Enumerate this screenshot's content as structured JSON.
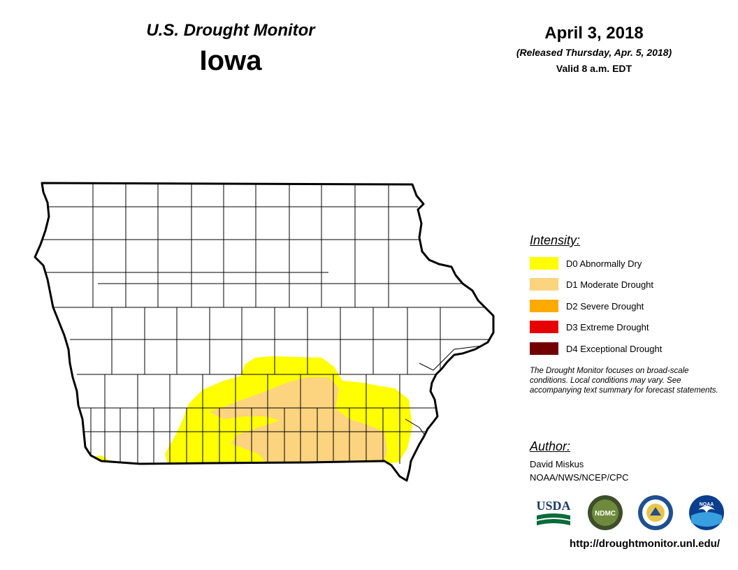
{
  "header": {
    "title": "U.S. Drought Monitor",
    "state": "Iowa"
  },
  "date_block": {
    "date": "April 3, 2018",
    "released": "(Released Thursday, Apr. 5, 2018)",
    "valid": "Valid 8 a.m. EDT"
  },
  "legend": {
    "title": "Intensity:",
    "items": [
      {
        "label": "D0 Abnormally Dry",
        "color": "#ffff00"
      },
      {
        "label": "D1 Moderate Drought",
        "color": "#fcd37f"
      },
      {
        "label": "D2 Severe Drought",
        "color": "#ffaa00"
      },
      {
        "label": "D3 Extreme Drought",
        "color": "#e60000"
      },
      {
        "label": "D4 Exceptional Drought",
        "color": "#730000"
      }
    ],
    "note": "The Drought Monitor focuses on broad-scale conditions. Local conditions may vary. See accompanying text summary for forecast statements."
  },
  "author": {
    "title": "Author:",
    "name": "David Miskus",
    "org": "NOAA/NWS/NCEP/CPC"
  },
  "logos": [
    {
      "name": "usda-logo",
      "text": "USDA"
    },
    {
      "name": "ndmc-logo",
      "text": "NDMC"
    },
    {
      "name": "doc-seal-logo",
      "text": ""
    },
    {
      "name": "noaa-logo",
      "text": "NOAA"
    }
  ],
  "footer": {
    "url": "http://droughtmonitor.unl.edu/"
  },
  "map": {
    "d0_color": "#ffff00",
    "d1_color": "#fcd37f",
    "border_color": "#000000",
    "county_line_color": "#000000"
  }
}
